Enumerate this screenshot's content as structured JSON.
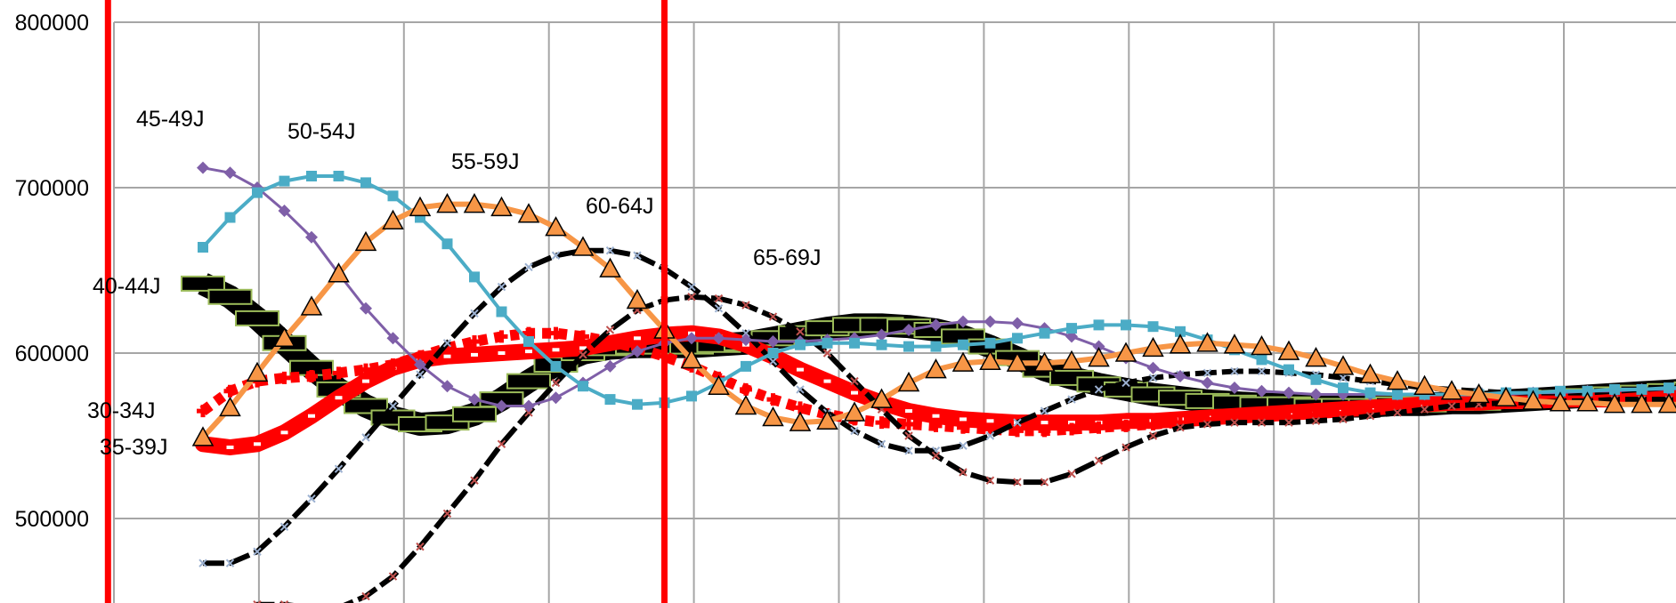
{
  "chart_data": {
    "type": "line",
    "title": "",
    "xlabel": "",
    "ylabel": "",
    "ylim": [
      450000,
      800000
    ],
    "y_ticks": [
      "800000",
      "700000",
      "600000",
      "500000"
    ],
    "y_tick_values": [
      800000,
      700000,
      600000,
      500000
    ],
    "grid": true,
    "legend": "inline labels",
    "x": [
      0,
      1,
      2,
      3,
      4,
      5,
      6,
      7,
      8,
      9,
      10,
      11,
      12,
      13,
      14,
      15,
      16,
      17,
      18,
      19,
      20,
      21,
      22,
      23,
      24,
      25,
      26,
      27,
      28,
      29,
      30,
      31,
      32,
      33,
      34,
      35,
      36,
      37,
      38,
      39,
      40,
      41,
      42,
      43,
      44,
      45,
      46,
      47,
      48,
      49,
      50,
      51,
      52,
      53,
      54,
      55,
      56,
      57
    ],
    "vertical_markers": [
      {
        "x": -3.5,
        "color": "#ff0000"
      },
      {
        "x": 17.0,
        "color": "#ff0000"
      }
    ],
    "series": [
      {
        "name": "30-34J",
        "color": "#ff0000",
        "style": "plus",
        "values": [
          565000,
          577000,
          583000,
          585000,
          586000,
          588000,
          590000,
          593000,
          598000,
          603000,
          607000,
          610000,
          612000,
          612000,
          610000,
          607000,
          603000,
          598000,
          592000,
          585000,
          578000,
          572000,
          567000,
          563000,
          560000,
          558000,
          557000,
          556000,
          555000,
          554000,
          553000,
          553000,
          554000,
          555000,
          556000,
          557000,
          558000,
          560000,
          562000,
          563000,
          565000,
          566000,
          567000,
          568000,
          569000,
          570000,
          570000,
          571000,
          571000,
          572000,
          572000,
          572000,
          572000,
          572000,
          572000,
          572000,
          572000,
          572000
        ]
      },
      {
        "name": "35-39J",
        "color": "#ff0000",
        "style": "thick",
        "values": [
          545000,
          543000,
          545000,
          552000,
          562000,
          573000,
          583000,
          591000,
          596000,
          598000,
          599000,
          600000,
          601000,
          602000,
          603000,
          606000,
          609000,
          611000,
          612000,
          610000,
          605000,
          598000,
          590000,
          583000,
          576000,
          570000,
          565000,
          562000,
          560000,
          559000,
          558000,
          558000,
          558000,
          558000,
          559000,
          559000,
          560000,
          561000,
          562000,
          563000,
          564000,
          565000,
          566000,
          567000,
          568000,
          569000,
          570000,
          570000,
          571000,
          571000,
          572000,
          572000,
          572000,
          573000,
          573000,
          573000,
          573000,
          573000
        ]
      },
      {
        "name": "40-44J",
        "color": "#000000",
        "style": "block",
        "values": [
          642000,
          634000,
          621000,
          606000,
          591000,
          578000,
          568000,
          561000,
          557000,
          558000,
          563000,
          572000,
          583000,
          593000,
          600000,
          603000,
          604000,
          604000,
          604000,
          605000,
          606000,
          609000,
          612000,
          615000,
          617000,
          617000,
          616000,
          614000,
          610000,
          604000,
          597000,
          590000,
          585000,
          581000,
          578000,
          575000,
          573000,
          571000,
          570000,
          569000,
          569000,
          568000,
          568000,
          568000,
          569000,
          569000,
          570000,
          570000,
          571000,
          572000,
          573000,
          574000,
          575000,
          576000,
          577000,
          578000,
          579000,
          580000
        ]
      },
      {
        "name": "45-49J",
        "color": "#7f5fa8",
        "style": "diamond",
        "values": [
          712000,
          709000,
          700000,
          686000,
          670000,
          648000,
          627000,
          609000,
          593000,
          580000,
          572000,
          568000,
          568000,
          573000,
          582000,
          592000,
          601000,
          606000,
          609000,
          609000,
          608000,
          607000,
          607000,
          608000,
          609000,
          611000,
          614000,
          617000,
          619000,
          619000,
          618000,
          615000,
          610000,
          604000,
          597000,
          591000,
          586000,
          582000,
          579000,
          577000,
          576000,
          575000,
          575000,
          575000,
          575000,
          575000,
          575000,
          575000,
          575000,
          576000,
          576000,
          577000,
          577000,
          578000,
          578000,
          579000,
          580000,
          581000
        ]
      },
      {
        "name": "50-54J",
        "color": "#4bacc6",
        "style": "square",
        "values": [
          664000,
          682000,
          697000,
          704000,
          707000,
          707000,
          703000,
          695000,
          682000,
          666000,
          646000,
          625000,
          607000,
          592000,
          580000,
          572000,
          569000,
          570000,
          574000,
          582000,
          592000,
          600000,
          605000,
          606000,
          606000,
          605000,
          604000,
          604000,
          605000,
          606000,
          609000,
          612000,
          615000,
          617000,
          617000,
          616000,
          613000,
          608000,
          602000,
          596000,
          590000,
          584000,
          579000,
          576000,
          575000,
          575000,
          575000,
          575000,
          576000,
          576000,
          577000,
          577000,
          578000,
          578000,
          579000,
          579000,
          580000,
          580000
        ]
      },
      {
        "name": "55-59J",
        "color": "#f79646",
        "style": "triangle",
        "values": [
          549000,
          567000,
          588000,
          609000,
          628000,
          648000,
          667000,
          680000,
          688000,
          690000,
          690000,
          688000,
          684000,
          676000,
          664000,
          651000,
          632000,
          614000,
          596000,
          580000,
          568000,
          561000,
          558000,
          559000,
          564000,
          572000,
          582000,
          590000,
          594000,
          595000,
          594000,
          594000,
          595000,
          597000,
          600000,
          603000,
          605000,
          606000,
          605000,
          604000,
          601000,
          597000,
          592000,
          587000,
          583000,
          580000,
          577000,
          575000,
          573000,
          571000,
          570000,
          570000,
          569000,
          569000,
          569000,
          569000,
          569000,
          569000
        ]
      },
      {
        "name": "60-64J",
        "color": "#000000",
        "style": "dashed-x",
        "values": [
          473000,
          473000,
          480000,
          495000,
          512000,
          530000,
          549000,
          568000,
          587000,
          606000,
          624000,
          640000,
          652000,
          659000,
          662000,
          662000,
          659000,
          651000,
          640000,
          627000,
          612000,
          595000,
          578000,
          564000,
          553000,
          545000,
          541000,
          541000,
          544000,
          550000,
          558000,
          565000,
          572000,
          578000,
          582000,
          585000,
          587000,
          588000,
          589000,
          589000,
          588000,
          587000,
          585000,
          583000,
          581000,
          579000,
          578000,
          577000,
          576000,
          576000,
          576000,
          576000,
          577000,
          578000,
          579000,
          580000,
          581000,
          582000
        ]
      },
      {
        "name": "65-69J",
        "color": "#000000",
        "style": "dashed-red-x",
        "values": [
          437000,
          441000,
          448000,
          448000,
          446000,
          446000,
          453000,
          465000,
          483000,
          503000,
          523000,
          545000,
          564000,
          582000,
          599000,
          614000,
          626000,
          632000,
          634000,
          633000,
          629000,
          622000,
          613000,
          600000,
          583000,
          566000,
          550000,
          538000,
          528000,
          523000,
          522000,
          522000,
          527000,
          535000,
          543000,
          550000,
          555000,
          557000,
          558000,
          558000,
          558000,
          559000,
          560000,
          562000,
          564000,
          566000,
          568000,
          569000,
          570000,
          570000,
          571000,
          571000,
          572000,
          572000,
          572000,
          573000,
          573000,
          573000
        ]
      }
    ],
    "series_labels": [
      "45-49J",
      "50-54J",
      "55-59J",
      "60-64J",
      "65-69J",
      "40-44J",
      "30-34J",
      "35-39J"
    ]
  }
}
